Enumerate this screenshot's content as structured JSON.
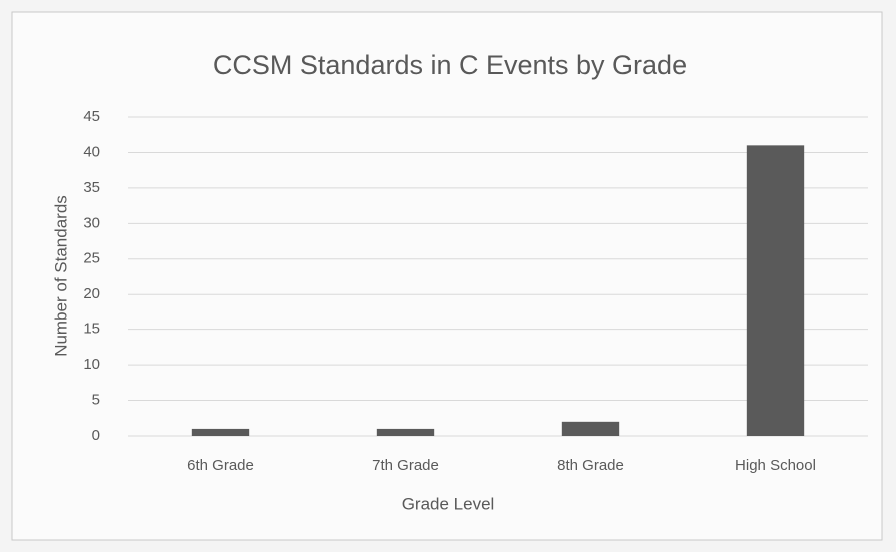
{
  "chart_data": {
    "type": "bar",
    "title": "CCSM Standards in C Events by Grade",
    "categories": [
      "6th Grade",
      "7th Grade",
      "8th Grade",
      "High School"
    ],
    "values": [
      1,
      1,
      2,
      41
    ],
    "color": "#5a5a5a",
    "xlabel": "Grade Level",
    "ylabel": "Number of Standards",
    "ylim": [
      0,
      45
    ],
    "yticks": [
      0,
      5,
      10,
      15,
      20,
      25,
      30,
      35,
      40,
      45
    ],
    "grid": true
  }
}
